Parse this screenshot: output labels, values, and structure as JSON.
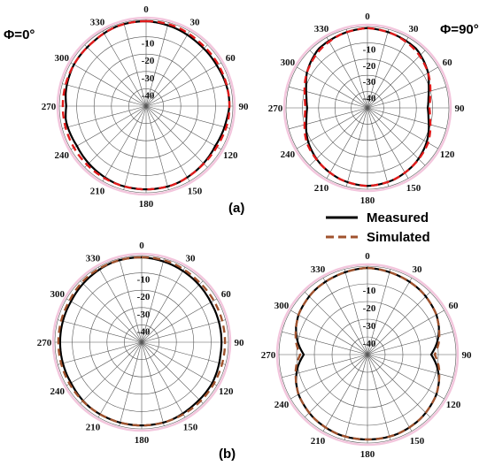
{
  "figure": {
    "phi_left": "Φ=0°",
    "phi_right": "Φ=90°",
    "panel_a": "(a)",
    "panel_b": "(b)"
  },
  "legend": {
    "measured": "Measured",
    "simulated": "Simulated"
  },
  "colors": {
    "measured": "#000000",
    "simulated_a": "#e01b1b",
    "simulated_b": "#a0522d",
    "grid": "#555555",
    "outline": "#f3c6dd"
  },
  "chart_data": [
    {
      "type": "polar-line",
      "panel": "(a)",
      "plane": "Φ=0°",
      "angle_ticks": [
        "0",
        "30",
        "60",
        "90",
        "120",
        "150",
        "180",
        "210",
        "240",
        "270",
        "300",
        "330"
      ],
      "radial_ticks": [
        "-10",
        "-20",
        "-30",
        "-40"
      ],
      "rlim": [
        -50,
        0
      ],
      "series": [
        {
          "name": "Measured",
          "angles": [
            0,
            20,
            40,
            60,
            80,
            90,
            100,
            120,
            140,
            160,
            180,
            200,
            220,
            240,
            260,
            270,
            280,
            300,
            320,
            340
          ],
          "values": [
            -1,
            -2,
            -3,
            -3,
            -2,
            -2,
            -3,
            -4,
            -3,
            -2,
            -2,
            -2,
            -3,
            -4,
            -3,
            -4,
            -3,
            -2,
            -2,
            -1
          ]
        },
        {
          "name": "Simulated",
          "angles": [
            0,
            20,
            40,
            60,
            80,
            90,
            100,
            120,
            140,
            160,
            180,
            200,
            220,
            240,
            260,
            270,
            280,
            300,
            320,
            340
          ],
          "values": [
            -1,
            -1,
            -2,
            -2,
            -2,
            -2,
            -2,
            -3,
            -3,
            -2,
            -2,
            -2,
            -2,
            -2,
            -2,
            -2,
            -2,
            -2,
            -2,
            -1
          ]
        }
      ]
    },
    {
      "type": "polar-line",
      "panel": "(a)",
      "plane": "Φ=90°",
      "angle_ticks": [
        "0",
        "30",
        "60",
        "90",
        "120",
        "150",
        "180",
        "210",
        "240",
        "270",
        "300",
        "330"
      ],
      "radial_ticks": [
        "-10",
        "-20",
        "-30",
        "-40"
      ],
      "rlim": [
        -50,
        0
      ],
      "series": [
        {
          "name": "Measured",
          "angles": [
            0,
            20,
            40,
            60,
            70,
            80,
            90,
            100,
            110,
            120,
            140,
            160,
            180,
            200,
            220,
            240,
            250,
            260,
            270,
            280,
            290,
            300,
            320,
            340
          ],
          "values": [
            -1,
            -2,
            -3,
            -7,
            -10,
            -12,
            -13,
            -12,
            -10,
            -8,
            -5,
            -3,
            -2,
            -3,
            -5,
            -8,
            -10,
            -12,
            -13,
            -12,
            -10,
            -7,
            -3,
            -2
          ]
        },
        {
          "name": "Simulated",
          "angles": [
            0,
            20,
            40,
            60,
            70,
            80,
            90,
            100,
            110,
            120,
            140,
            160,
            180,
            200,
            220,
            240,
            250,
            260,
            270,
            280,
            290,
            300,
            320,
            340
          ],
          "values": [
            -1,
            -2,
            -4,
            -7,
            -9,
            -11,
            -12,
            -11,
            -9,
            -7,
            -5,
            -3,
            -2,
            -3,
            -5,
            -7,
            -9,
            -11,
            -12,
            -11,
            -9,
            -7,
            -4,
            -2
          ]
        }
      ]
    },
    {
      "type": "polar-line",
      "panel": "(b)",
      "plane": "Φ=0°",
      "angle_ticks": [
        "0",
        "30",
        "60",
        "90",
        "120",
        "150",
        "180",
        "210",
        "240",
        "270",
        "300",
        "330"
      ],
      "radial_ticks": [
        "-10",
        "-20",
        "-30",
        "-40"
      ],
      "rlim": [
        -50,
        0
      ],
      "series": [
        {
          "name": "Measured",
          "angles": [
            0,
            20,
            40,
            60,
            80,
            90,
            100,
            120,
            140,
            160,
            180,
            200,
            220,
            240,
            260,
            270,
            280,
            300,
            320,
            340
          ],
          "values": [
            -1,
            -2,
            -3,
            -4,
            -4,
            -4,
            -4,
            -3,
            -3,
            -2,
            -2,
            -2,
            -2,
            -3,
            -3,
            -3,
            -3,
            -3,
            -2,
            -1
          ]
        },
        {
          "name": "Simulated",
          "angles": [
            0,
            20,
            40,
            60,
            80,
            90,
            100,
            120,
            140,
            160,
            180,
            200,
            220,
            240,
            260,
            270,
            280,
            300,
            320,
            340
          ],
          "values": [
            -1,
            -1,
            -2,
            -2,
            -2,
            -2,
            -2,
            -2,
            -2,
            -2,
            -2,
            -2,
            -2,
            -2,
            -2,
            -2,
            -2,
            -2,
            -1,
            -1
          ]
        }
      ]
    },
    {
      "type": "polar-line",
      "panel": "(b)",
      "plane": "Φ=90°",
      "angle_ticks": [
        "0",
        "30",
        "60",
        "90",
        "120",
        "150",
        "180",
        "210",
        "240",
        "270",
        "300",
        "330"
      ],
      "radial_ticks": [
        "-10",
        "-20",
        "-30",
        "-40"
      ],
      "rlim": [
        -50,
        0
      ],
      "series": [
        {
          "name": "Measured",
          "angles": [
            0,
            20,
            40,
            60,
            70,
            80,
            90,
            100,
            110,
            120,
            140,
            160,
            180,
            200,
            220,
            240,
            250,
            260,
            270,
            280,
            290,
            300,
            320,
            340
          ],
          "values": [
            -1,
            -2,
            -3,
            -5,
            -7,
            -10,
            -14,
            -10,
            -7,
            -5,
            -3,
            -2,
            -2,
            -2,
            -3,
            -5,
            -7,
            -10,
            -14,
            -10,
            -7,
            -5,
            -3,
            -2
          ]
        },
        {
          "name": "Simulated",
          "angles": [
            0,
            20,
            40,
            60,
            70,
            80,
            90,
            100,
            110,
            120,
            140,
            160,
            180,
            200,
            220,
            240,
            250,
            260,
            270,
            280,
            290,
            300,
            320,
            340
          ],
          "values": [
            -1,
            -2,
            -3,
            -5,
            -7,
            -9,
            -12,
            -9,
            -7,
            -5,
            -3,
            -2,
            -2,
            -2,
            -3,
            -5,
            -7,
            -9,
            -12,
            -9,
            -7,
            -5,
            -3,
            -2
          ]
        }
      ]
    }
  ]
}
